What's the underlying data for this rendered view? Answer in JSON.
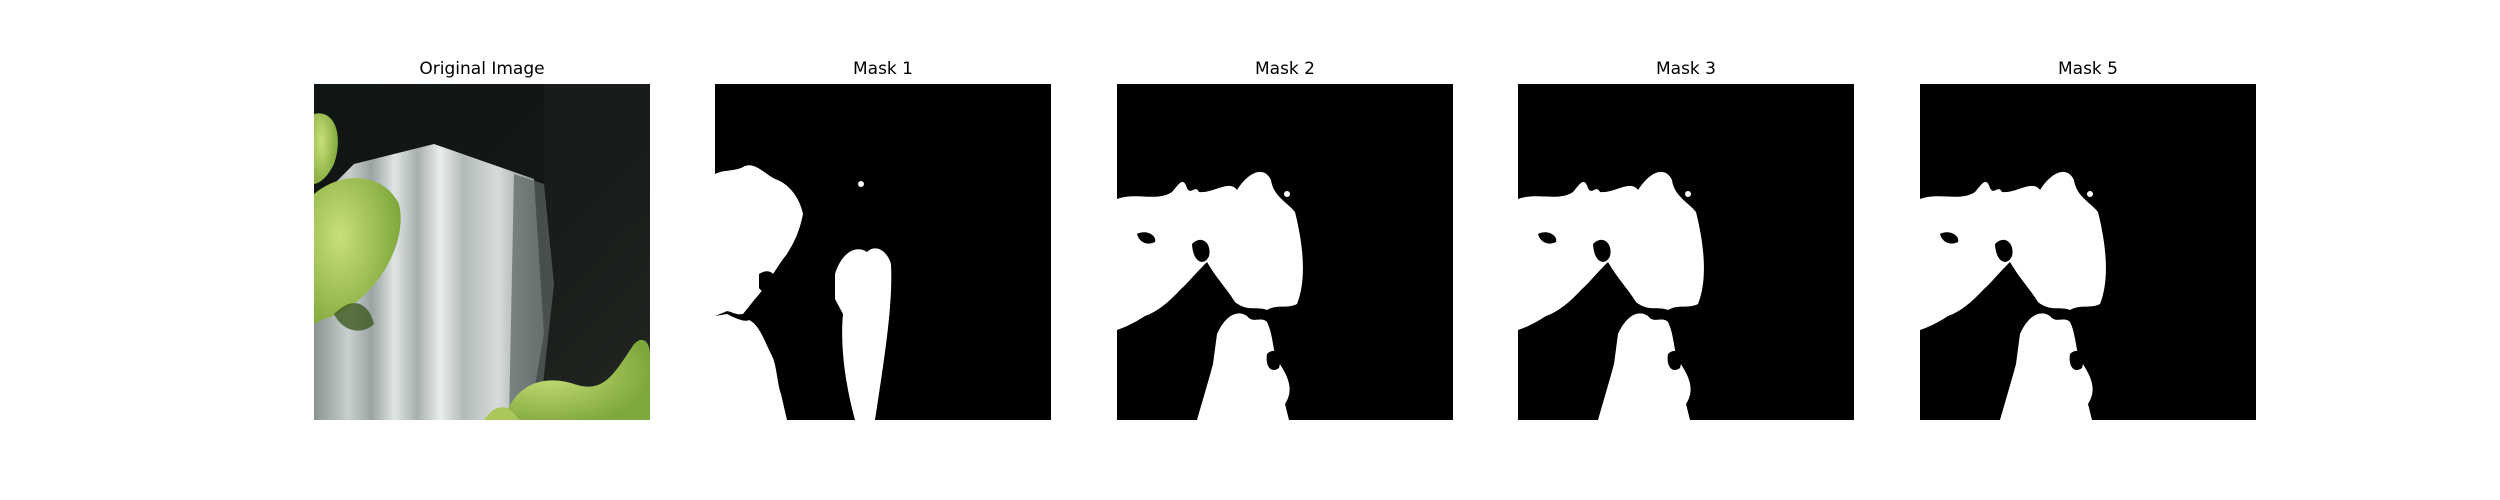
{
  "panels": [
    {
      "title": "Original Image"
    },
    {
      "title": "Mask 1"
    },
    {
      "title": "Mask 2"
    },
    {
      "title": "Mask 3"
    },
    {
      "title": "Mask 5"
    }
  ],
  "colors": {
    "mask_background": "#000000",
    "mask_foreground": "#ffffff"
  }
}
